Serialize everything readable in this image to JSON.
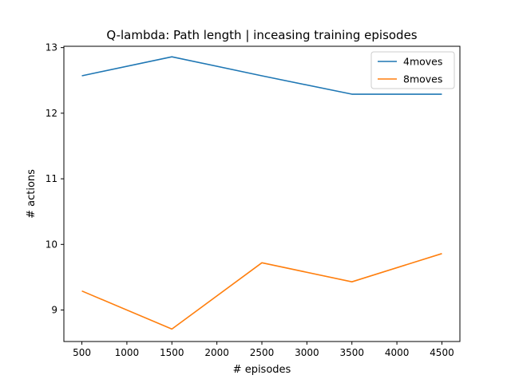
{
  "chart_data": {
    "type": "line",
    "title": "Q-lambda: Path length | inceasing training episodes",
    "xlabel": "# episodes",
    "ylabel": "# actions",
    "x": [
      500,
      1500,
      2500,
      3500,
      4500
    ],
    "xticks": [
      500,
      1000,
      1500,
      2000,
      2500,
      3000,
      3500,
      4000,
      4500
    ],
    "yticks": [
      9,
      10,
      11,
      12,
      13
    ],
    "xlim": [
      300,
      4700
    ],
    "ylim": [
      8.52,
      13.02
    ],
    "grid": false,
    "legend_position": "top-right",
    "series": [
      {
        "name": "4moves",
        "color": "#1f77b4",
        "values": [
          12.57,
          12.86,
          12.57,
          12.29,
          12.29
        ]
      },
      {
        "name": "8moves",
        "color": "#ff7f0e",
        "values": [
          9.29,
          8.71,
          9.72,
          9.43,
          9.86
        ]
      }
    ]
  }
}
